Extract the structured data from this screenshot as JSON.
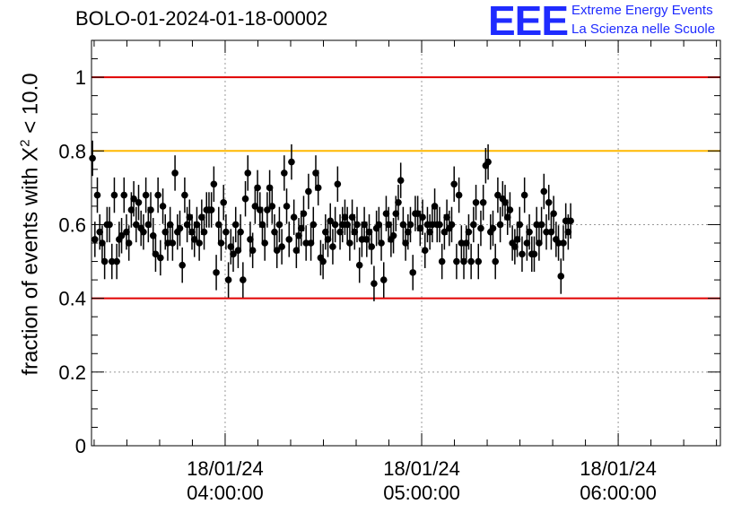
{
  "header": {
    "title": "BOLO-01-2024-01-18-00002",
    "logo_mark": "EEE",
    "logo_line1": "Extreme Energy Events",
    "logo_line2": "La Scienza nelle Scuole"
  },
  "colors": {
    "upper_limit": "#e00000",
    "warning": "#ffb800",
    "lower_limit": "#e00000",
    "points": "#000000",
    "logo": "#1f2bff"
  },
  "chart_data": {
    "type": "scatter",
    "ylabel_prefix": "fraction of events with ",
    "ylabel_symbol": "X",
    "ylabel_exp": "2",
    "ylabel_suffix": " < 10.0",
    "xlabel": "",
    "ylim": [
      0,
      1.1
    ],
    "xlim_hours": [
      3.32,
      6.52
    ],
    "y_ticks": [
      {
        "value": 0,
        "label": "0"
      },
      {
        "value": 0.2,
        "label": "0.2"
      },
      {
        "value": 0.4,
        "label": "0.4"
      },
      {
        "value": 0.6,
        "label": "0.6"
      },
      {
        "value": 0.8,
        "label": "0.8"
      },
      {
        "value": 1.0,
        "label": "1"
      }
    ],
    "x_ticks": [
      {
        "hour": 4,
        "date": "18/01/24",
        "time": "04:00:00"
      },
      {
        "hour": 5,
        "date": "18/01/24",
        "time": "05:00:00"
      },
      {
        "hour": 6,
        "date": "18/01/24",
        "time": "06:00:00"
      }
    ],
    "reference_lines": [
      {
        "value": 1.0,
        "color": "#e00000"
      },
      {
        "value": 0.8,
        "color": "#ffb800"
      },
      {
        "value": 0.4,
        "color": "#e00000"
      }
    ],
    "grid": true,
    "series": [
      {
        "error": 0.048,
        "x_start_hour": 3.325,
        "x_step_hour": 0.01235,
        "values": [
          0.78,
          0.56,
          0.68,
          0.58,
          0.55,
          0.5,
          0.6,
          0.6,
          0.5,
          0.68,
          0.5,
          0.56,
          0.57,
          0.68,
          0.58,
          0.55,
          0.64,
          0.67,
          0.6,
          0.66,
          0.59,
          0.58,
          0.68,
          0.6,
          0.64,
          0.57,
          0.52,
          0.68,
          0.51,
          0.65,
          0.58,
          0.55,
          0.6,
          0.55,
          0.74,
          0.58,
          0.59,
          0.49,
          0.68,
          0.6,
          0.62,
          0.58,
          0.56,
          0.6,
          0.55,
          0.62,
          0.58,
          0.64,
          0.64,
          0.64,
          0.71,
          0.47,
          0.6,
          0.55,
          0.66,
          0.58,
          0.45,
          0.54,
          0.52,
          0.6,
          0.53,
          0.58,
          0.45,
          0.67,
          0.74,
          0.56,
          0.53,
          0.65,
          0.7,
          0.64,
          0.6,
          0.55,
          0.64,
          0.7,
          0.65,
          0.58,
          0.53,
          0.6,
          0.54,
          0.74,
          0.65,
          0.56,
          0.77,
          0.62,
          0.53,
          0.57,
          0.59,
          0.63,
          0.55,
          0.69,
          0.55,
          0.6,
          0.74,
          0.7,
          0.51,
          0.5,
          0.58,
          0.56,
          0.61,
          0.54,
          0.6,
          0.71,
          0.58,
          0.6,
          0.62,
          0.6,
          0.55,
          0.62,
          0.58,
          0.6,
          0.49,
          0.56,
          0.6,
          0.56,
          0.58,
          0.54,
          0.44,
          0.59,
          0.6,
          0.55,
          0.45,
          0.63,
          0.6,
          0.56,
          0.57,
          0.63,
          0.66,
          0.72,
          0.6,
          0.55,
          0.58,
          0.6,
          0.47,
          0.63,
          0.63,
          0.59,
          0.62,
          0.53,
          0.6,
          0.58,
          0.6,
          0.65,
          0.6,
          0.6,
          0.5,
          0.58,
          0.62,
          0.59,
          0.6,
          0.71,
          0.5,
          0.68,
          0.55,
          0.5,
          0.55,
          0.58,
          0.5,
          0.6,
          0.66,
          0.5,
          0.59,
          0.66,
          0.76,
          0.77,
          0.58,
          0.59,
          0.5,
          0.68,
          0.6,
          0.67,
          0.66,
          0.62,
          0.64,
          0.55,
          0.54,
          0.56,
          0.6,
          0.52,
          0.68,
          0.55,
          0.58,
          0.52,
          0.52,
          0.6,
          0.55,
          0.6,
          0.69,
          0.58,
          0.66,
          0.58,
          0.63,
          0.56,
          0.55,
          0.46,
          0.55,
          0.61,
          0.58,
          0.61
        ]
      }
    ]
  }
}
